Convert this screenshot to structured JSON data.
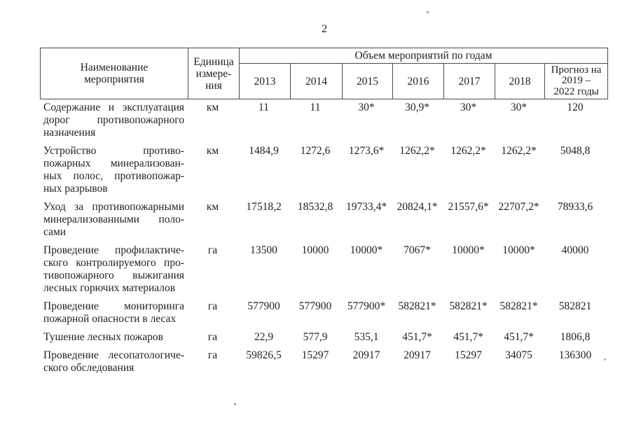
{
  "page": {
    "number": "2"
  },
  "table": {
    "header": {
      "name_lines": [
        "Наименование",
        "мероприятия"
      ],
      "unit_lines": [
        "Единица",
        "измере-",
        "ния"
      ],
      "group_label": "Объем мероприятий по годам",
      "years": [
        "2013",
        "2014",
        "2015",
        "2016",
        "2017",
        "2018"
      ],
      "forecast_lines": [
        "Прогноз на",
        "2019 –",
        "2022 годы"
      ]
    },
    "rows": [
      {
        "name_lines": [
          "Содержание и эксплуатация",
          "дорог противопожарного",
          "назначения"
        ],
        "unit": "км",
        "values": [
          "11",
          "11",
          "30*",
          "30,9*",
          "30*",
          "30*",
          "120"
        ]
      },
      {
        "name_lines": [
          "Устройство противо-",
          "пожарных минерализован-",
          "ных полос, противопожар-",
          "ных разрывов"
        ],
        "unit": "км",
        "values": [
          "1484,9",
          "1272,6",
          "1273,6*",
          "1262,2*",
          "1262,2*",
          "1262,2*",
          "5048,8"
        ]
      },
      {
        "name_lines": [
          "Уход за противопожарными",
          "минерализованными поло-",
          "сами"
        ],
        "unit": "км",
        "values": [
          "17518,2",
          "18532,8",
          "19733,4*",
          "20824,1*",
          "21557,6*",
          "22707,2*",
          "78933,6"
        ]
      },
      {
        "name_lines": [
          "Проведение профилактиче-",
          "ского контролируемого про-",
          "тивопожарного выжигания",
          "лесных горючих материалов"
        ],
        "unit": "га",
        "values": [
          "13500",
          "10000",
          "10000*",
          "7067*",
          "10000*",
          "10000*",
          "40000"
        ]
      },
      {
        "name_lines": [
          "Проведение мониторинга",
          "пожарной опасности в лесах"
        ],
        "unit": "га",
        "values": [
          "577900",
          "577900",
          "577900*",
          "582821*",
          "582821*",
          "582821*",
          "582821"
        ]
      },
      {
        "name_lines": [
          "Тушение лесных пожаров"
        ],
        "unit": "га",
        "values": [
          "22,9",
          "577,9",
          "535,1",
          "451,7*",
          "451,7*",
          "451,7*",
          "1806,8"
        ]
      },
      {
        "name_lines": [
          "Проведение лесопатологиче-",
          "ского обследования"
        ],
        "unit": "га",
        "values": [
          "59826,5",
          "15297",
          "20917",
          "20917",
          "15297",
          "34075",
          "136300"
        ]
      }
    ]
  }
}
